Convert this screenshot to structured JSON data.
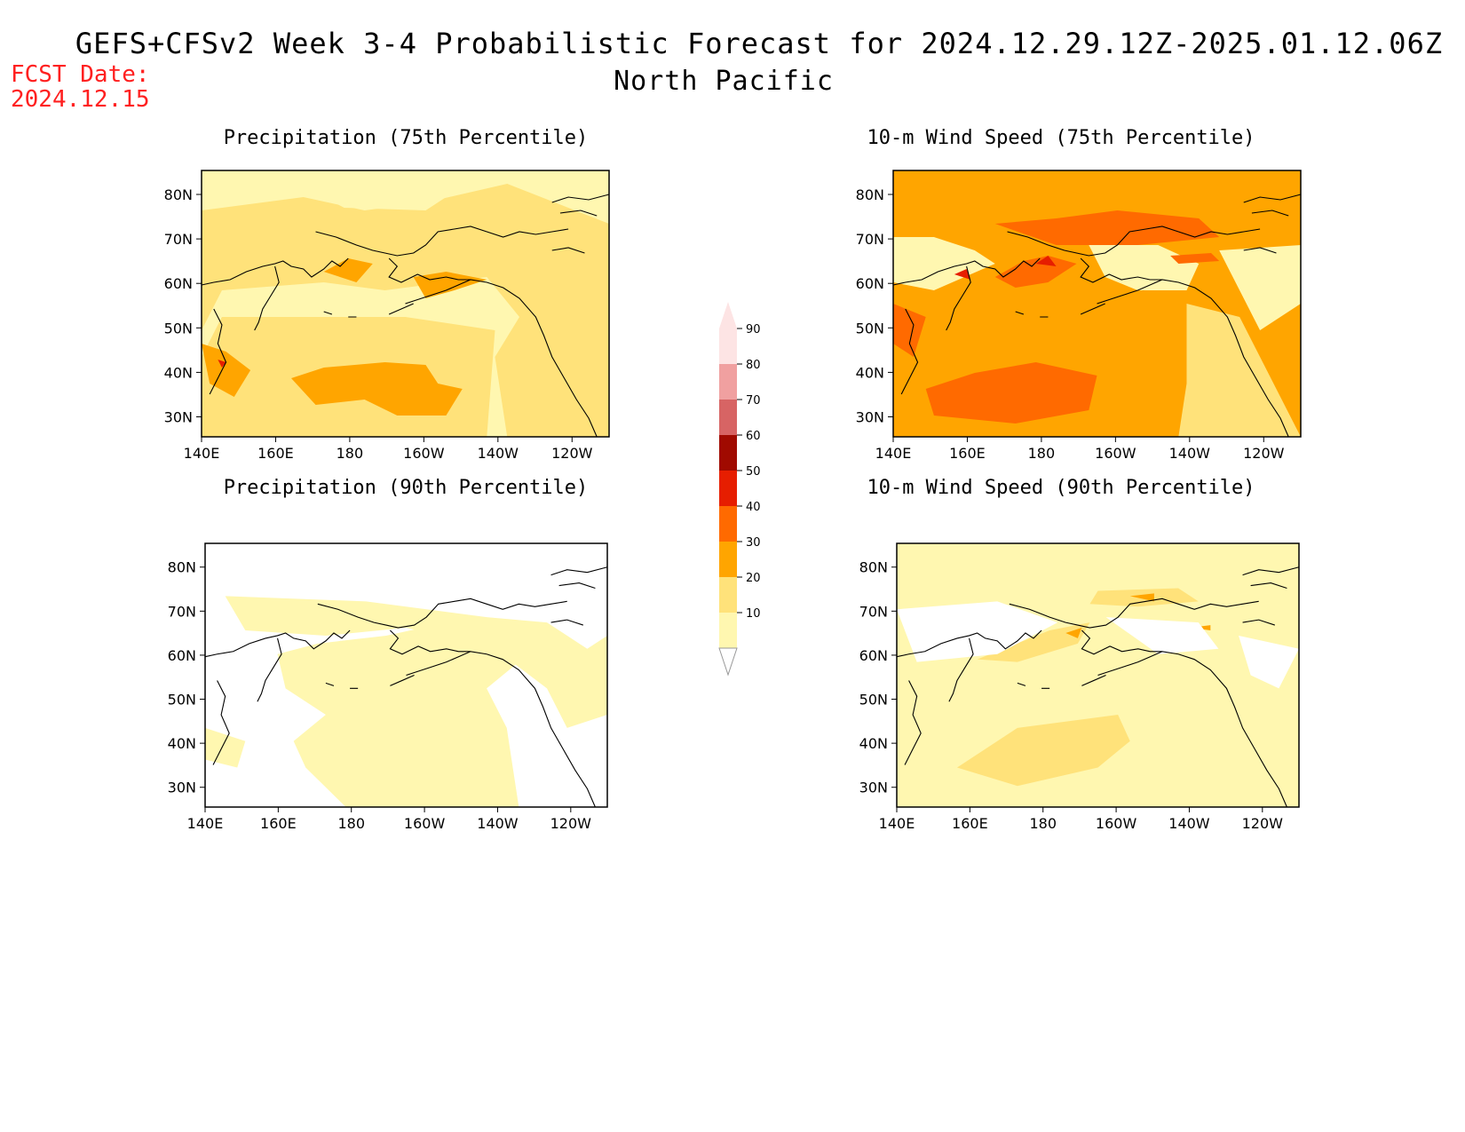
{
  "header": {
    "title": "GEFS+CFSv2 Week 3-4 Probabilistic Forecast for 2024.12.29.12Z-2025.01.12.06Z",
    "region": "North Pacific",
    "fcst_label": "FCST Date:",
    "fcst_date": "2024.12.15"
  },
  "panels": [
    {
      "id": "p75",
      "title": "Precipitation (75th Percentile)"
    },
    {
      "id": "w75",
      "title": "10-m Wind Speed (75th Percentile)"
    },
    {
      "id": "p90",
      "title": "Precipitation (90th Percentile)"
    },
    {
      "id": "w90",
      "title": "10-m Wind Speed (90th Percentile)"
    }
  ],
  "axes": {
    "x_ticks": [
      "140E",
      "160E",
      "180",
      "160W",
      "140W",
      "120W"
    ],
    "y_ticks": [
      "80N",
      "70N",
      "60N",
      "50N",
      "40N",
      "30N"
    ]
  },
  "colorbar": {
    "levels": [
      "10",
      "20",
      "30",
      "40",
      "50",
      "60",
      "70",
      "80",
      "90"
    ],
    "colors": [
      "#fff7b0",
      "#ffe27a",
      "#ffa500",
      "#ff6a00",
      "#e61e00",
      "#a00a00",
      "#d76464",
      "#f0a0a0",
      "#fde4e4"
    ]
  }
}
